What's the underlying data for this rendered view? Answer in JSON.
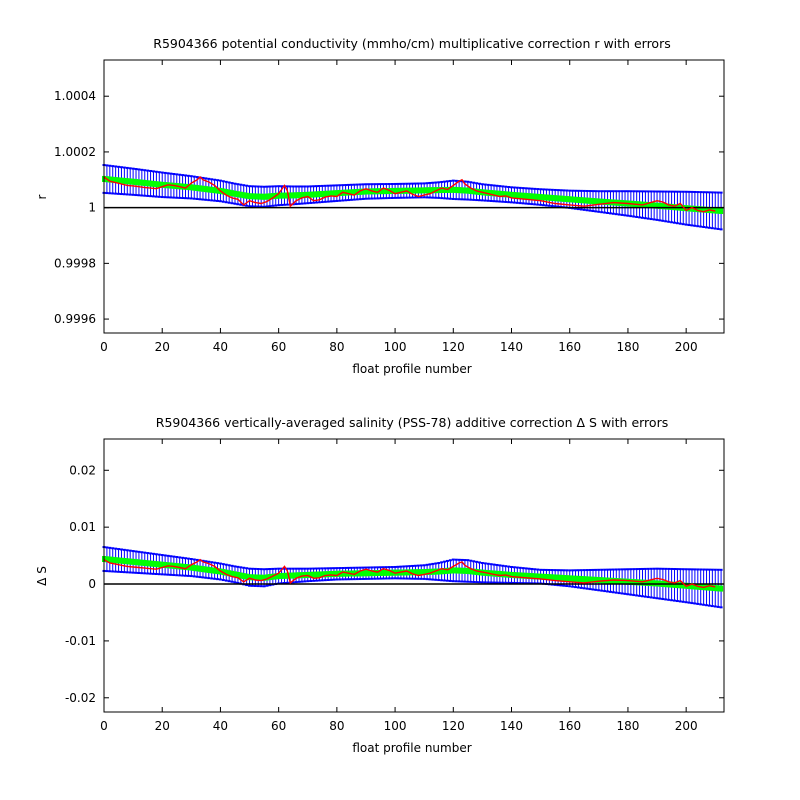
{
  "chart_data": [
    {
      "type": "line",
      "title": "R5904366 potential conductivity (mmho/cm) multiplicative correction r with errors",
      "xlabel": "float profile number",
      "ylabel": "r",
      "xlim": [
        0,
        213
      ],
      "ylim": [
        0.99955,
        1.00053
      ],
      "xticks": [
        0,
        20,
        40,
        60,
        80,
        100,
        120,
        140,
        160,
        180,
        200
      ],
      "yticks": [
        0.9996,
        0.9998,
        1,
        1.0002,
        1.0004
      ],
      "ytick_labels": [
        "0.9996",
        "0.9998",
        "1",
        "1.0002",
        "1.0004"
      ],
      "reference_line": 1,
      "grid": false,
      "colors": {
        "error_bars": "#0000ff",
        "fit": "#00ff00",
        "raw": "#ff0000",
        "reference": "#000000"
      },
      "series": [
        {
          "role": "fit",
          "x": [
            0,
            10,
            20,
            30,
            40,
            45,
            50,
            55,
            60,
            65,
            70,
            80,
            90,
            100,
            110,
            115,
            120,
            125,
            130,
            140,
            150,
            160,
            170,
            180,
            190,
            200,
            212
          ],
          "values": [
            1.000103,
            1.000093,
            1.000082,
            1.000073,
            1.00006,
            1.00005,
            1.000041,
            1.000039,
            1.000043,
            1.000044,
            1.000046,
            1.000052,
            1.000058,
            1.00006,
            1.000062,
            1.000063,
            1.000064,
            1.000061,
            1.000055,
            1.000046,
            1.000038,
            1.00003,
            1.000022,
            1.000015,
            1.000007,
            0.999998,
            0.999988
          ]
        },
        {
          "role": "fit_error",
          "x": [
            0,
            10,
            20,
            30,
            40,
            45,
            50,
            55,
            60,
            65,
            70,
            80,
            90,
            100,
            110,
            115,
            120,
            125,
            130,
            140,
            150,
            160,
            170,
            180,
            190,
            200,
            212
          ],
          "values": [
            5e-05,
            4.7e-05,
            4.4e-05,
            4e-05,
            3.7e-05,
            3.6e-05,
            3.6e-05,
            3.6e-05,
            3.4e-05,
            3.2e-05,
            3e-05,
            2.8e-05,
            2.6e-05,
            2.5e-05,
            2.5e-05,
            2.8e-05,
            3.3e-05,
            3.2e-05,
            2.9e-05,
            2.7e-05,
            2.8e-05,
            3.1e-05,
            3.7e-05,
            4.4e-05,
            5.1e-05,
            5.9e-05,
            6.6e-05
          ]
        },
        {
          "role": "raw",
          "x": [
            0,
            2,
            4,
            6,
            8,
            10,
            12,
            14,
            16,
            18,
            20,
            22,
            24,
            26,
            28,
            30,
            32,
            33,
            34,
            36,
            38,
            40,
            42,
            44,
            46,
            48,
            50,
            52,
            54,
            56,
            58,
            60,
            61,
            62,
            63,
            64,
            66,
            68,
            70,
            72,
            74,
            76,
            78,
            80,
            82,
            84,
            86,
            88,
            90,
            92,
            94,
            96,
            98,
            100,
            102,
            104,
            106,
            108,
            110,
            112,
            114,
            116,
            118,
            120,
            122,
            123,
            124,
            126,
            128,
            130,
            132,
            134,
            136,
            138,
            140,
            145,
            150,
            155,
            160,
            165,
            170,
            175,
            180,
            185,
            190,
            192,
            194,
            196,
            198,
            200,
            202,
            204,
            206,
            208,
            210
          ],
          "values": [
            1.00011,
            1.000095,
            1.00009,
            1.000085,
            1.00008,
            1.000078,
            1.000075,
            1.000072,
            1.00007,
            1.000068,
            1.000075,
            1.000082,
            1.00008,
            1.000075,
            1.00007,
            1.000088,
            1.0001,
            1.00011,
            1.0001,
            1.000092,
            1.00008,
            1.00006,
            1.000045,
            1.000035,
            1.00003,
            1.00001,
            1.000025,
            1.000018,
            1.000015,
            1.000022,
            1.000035,
            1.00005,
            1.000065,
            1.00008,
            1.00006,
            1.000005,
            1.000025,
            1.000035,
            1.00004,
            1.000025,
            1.000028,
            1.000038,
            1.000042,
            1.00004,
            1.000055,
            1.00005,
            1.000045,
            1.00006,
            1.000068,
            1.00006,
            1.000055,
            1.00007,
            1.000062,
            1.00005,
            1.000055,
            1.00006,
            1.000048,
            1.00004,
            1.000045,
            1.00005,
            1.00006,
            1.00007,
            1.000065,
            1.00008,
            1.000095,
            1.0001,
            1.000085,
            1.00007,
            1.00006,
            1.000055,
            1.00005,
            1.000045,
            1.00004,
            1.000042,
            1.000035,
            1.00003,
            1.000025,
            1.000015,
            1.00001,
            1.000005,
            1.000012,
            1.000018,
            1.000015,
            1.00001,
            1.000025,
            1.00002,
            1.00001,
            1.000005,
            1.000015,
            0.99999,
            1.0,
            0.99999,
            0.999985,
            0.999992,
            0.999988
          ]
        }
      ]
    },
    {
      "type": "line",
      "title": "R5904366 vertically-averaged salinity (PSS-78) additive correction Δ S with errors",
      "xlabel": "float profile number",
      "ylabel": "Δ S",
      "xlim": [
        0,
        213
      ],
      "ylim": [
        -0.0225,
        0.0255
      ],
      "xticks": [
        0,
        20,
        40,
        60,
        80,
        100,
        120,
        140,
        160,
        180,
        200
      ],
      "yticks": [
        -0.02,
        -0.01,
        0,
        0.01,
        0.02
      ],
      "ytick_labels": [
        "-0.02",
        "-0.01",
        "0",
        "0.01",
        "0.02"
      ],
      "reference_line": 0,
      "grid": false,
      "colors": {
        "error_bars": "#0000ff",
        "fit": "#00ff00",
        "raw": "#ff0000",
        "reference": "#000000"
      },
      "series": [
        {
          "role": "fit",
          "x": [
            0,
            10,
            20,
            30,
            40,
            45,
            50,
            55,
            60,
            65,
            70,
            80,
            90,
            100,
            110,
            115,
            120,
            125,
            130,
            140,
            150,
            160,
            170,
            180,
            190,
            200,
            212
          ],
          "values": [
            0.0044,
            0.0039,
            0.0034,
            0.0029,
            0.0022,
            0.0017,
            0.0012,
            0.0011,
            0.0014,
            0.0015,
            0.0016,
            0.0018,
            0.0019,
            0.002,
            0.0021,
            0.0022,
            0.0024,
            0.0023,
            0.002,
            0.0016,
            0.0013,
            0.001,
            0.0007,
            0.0004,
            0.0001,
            -0.0003,
            -0.0008
          ]
        },
        {
          "role": "fit_error",
          "x": [
            0,
            10,
            20,
            30,
            40,
            45,
            50,
            55,
            60,
            65,
            70,
            80,
            90,
            100,
            110,
            115,
            120,
            125,
            130,
            140,
            150,
            160,
            170,
            180,
            190,
            200,
            212
          ],
          "values": [
            0.0021,
            0.0019,
            0.0017,
            0.0015,
            0.0014,
            0.0014,
            0.0015,
            0.0015,
            0.0013,
            0.0012,
            0.0011,
            0.001,
            0.001,
            0.001,
            0.0012,
            0.0015,
            0.0019,
            0.0019,
            0.0017,
            0.0014,
            0.0012,
            0.0014,
            0.0018,
            0.0022,
            0.0026,
            0.0029,
            0.0033
          ]
        },
        {
          "role": "raw",
          "x": [
            0,
            2,
            4,
            6,
            8,
            10,
            12,
            14,
            16,
            18,
            20,
            22,
            24,
            26,
            28,
            30,
            32,
            33,
            34,
            36,
            38,
            40,
            42,
            44,
            46,
            48,
            50,
            52,
            54,
            56,
            58,
            60,
            61,
            62,
            63,
            64,
            66,
            68,
            70,
            72,
            74,
            76,
            78,
            80,
            82,
            84,
            86,
            88,
            90,
            92,
            94,
            96,
            98,
            100,
            102,
            104,
            106,
            108,
            110,
            112,
            114,
            116,
            118,
            120,
            122,
            123,
            124,
            126,
            128,
            130,
            132,
            134,
            136,
            138,
            140,
            145,
            150,
            155,
            160,
            165,
            170,
            175,
            180,
            185,
            190,
            192,
            194,
            196,
            198,
            200,
            202,
            204,
            206,
            208,
            210
          ],
          "values": [
            0.0043,
            0.0037,
            0.0035,
            0.0033,
            0.0031,
            0.003,
            0.0029,
            0.0028,
            0.0027,
            0.0026,
            0.0029,
            0.0032,
            0.0031,
            0.0029,
            0.0027,
            0.0034,
            0.0039,
            0.0043,
            0.0039,
            0.0036,
            0.0031,
            0.0023,
            0.0017,
            0.0013,
            0.0011,
            0.0004,
            0.001,
            0.0007,
            0.0006,
            0.0009,
            0.0014,
            0.0019,
            0.0025,
            0.0031,
            0.0023,
            0.0002,
            0.001,
            0.0014,
            0.0015,
            0.001,
            0.0011,
            0.0015,
            0.0016,
            0.0015,
            0.0021,
            0.0019,
            0.0017,
            0.0023,
            0.0026,
            0.0023,
            0.0021,
            0.0027,
            0.0024,
            0.0019,
            0.0021,
            0.0023,
            0.0018,
            0.0015,
            0.0017,
            0.0019,
            0.0023,
            0.0027,
            0.0025,
            0.0031,
            0.0037,
            0.0039,
            0.0033,
            0.0027,
            0.0023,
            0.0021,
            0.0019,
            0.0017,
            0.0015,
            0.0016,
            0.0013,
            0.0011,
            0.0009,
            0.0006,
            0.0004,
            0.0002,
            0.0005,
            0.0007,
            0.0006,
            0.0004,
            0.001,
            0.0008,
            0.0004,
            0.0002,
            0.0006,
            -0.0004,
            0.0,
            -0.0004,
            -0.0006,
            -0.0003,
            -0.0005
          ]
        }
      ]
    }
  ]
}
